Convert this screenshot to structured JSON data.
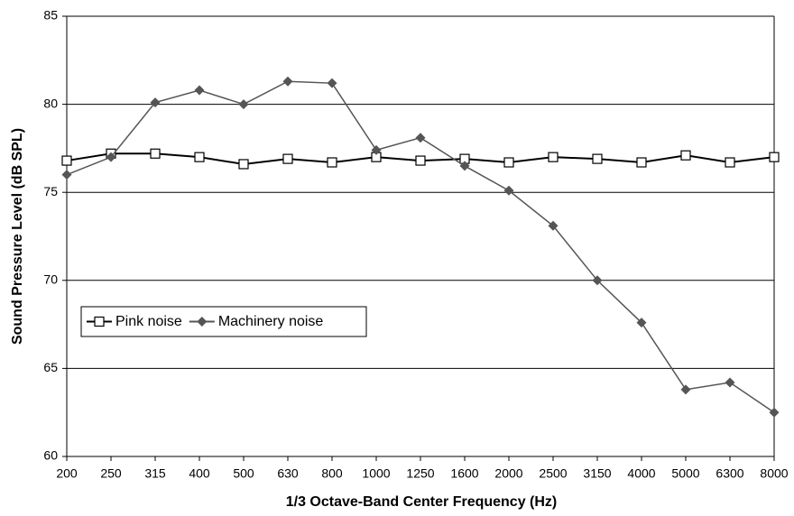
{
  "chart_data": {
    "type": "line",
    "x_label": "1/3 Octave-Band Center Frequency (Hz)",
    "y_label": "Sound Pressure Level (dB SPL)",
    "categories": [
      "200",
      "250",
      "315",
      "400",
      "500",
      "630",
      "800",
      "1000",
      "1250",
      "1600",
      "2000",
      "2500",
      "3150",
      "4000",
      "5000",
      "6300",
      "8000"
    ],
    "series": [
      {
        "name": "Pink noise",
        "color": "#000000",
        "marker": "square",
        "values": [
          76.8,
          77.2,
          77.2,
          77.0,
          76.6,
          76.9,
          76.7,
          77.0,
          76.8,
          76.9,
          76.7,
          77.0,
          76.9,
          76.7,
          77.1,
          76.7,
          77.0
        ]
      },
      {
        "name": "Machinery noise",
        "color": "#555555",
        "marker": "diamond",
        "values": [
          76.0,
          77.0,
          80.1,
          80.8,
          80.0,
          81.3,
          81.2,
          77.4,
          78.1,
          76.5,
          75.1,
          73.1,
          70.0,
          67.6,
          63.8,
          64.2,
          62.5
        ]
      }
    ],
    "ylim": [
      60,
      85
    ],
    "yticks": [
      60,
      65,
      70,
      75,
      80,
      85
    ],
    "grid": true,
    "legend": "left"
  }
}
